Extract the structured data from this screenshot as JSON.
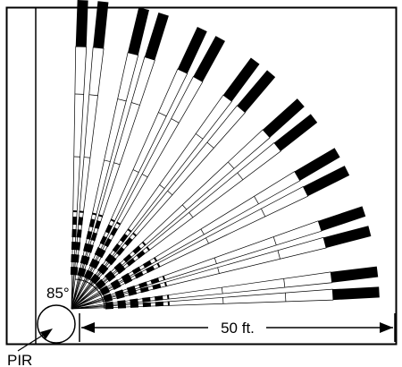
{
  "diagram": {
    "angle_label": "85°",
    "distance_label": "50 ft.",
    "sensor_label": "PIR",
    "fan": {
      "angle_deg": 85,
      "range_ft": 50,
      "beam_pairs": 8
    },
    "colors": {
      "line": "#000000",
      "background": "#ffffff"
    }
  }
}
